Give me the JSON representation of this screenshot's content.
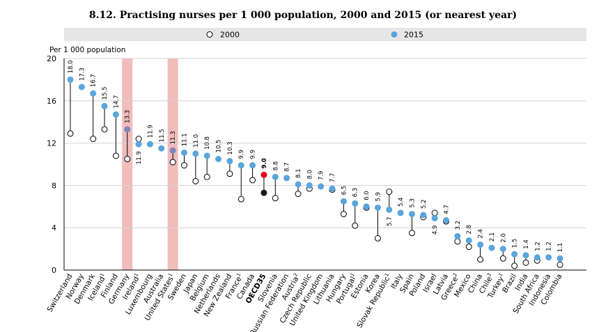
{
  "chart_data": {
    "type": "dot",
    "title": "8.12. Practising nurses per 1 000 population, 2000 and 2015 (or nearest year)",
    "ylabel": "Per 1 000 population",
    "ylim": [
      0,
      20
    ],
    "yticks": [
      0,
      4,
      8,
      12,
      16,
      20
    ],
    "grid": "horizontal",
    "legend_position": "top",
    "legend": [
      {
        "name": "2000",
        "marker": "hollow-circle"
      },
      {
        "name": "2015",
        "marker": "blue-circle"
      }
    ],
    "highlighted_categories": [
      "Germany",
      "United States"
    ],
    "categories": [
      {
        "name": "Switzerland",
        "sup": "",
        "v2000": 12.9,
        "v2015": 18.0,
        "label": "18.0"
      },
      {
        "name": "Norway",
        "sup": "",
        "v2000": null,
        "v2015": 17.3,
        "label": "17.3"
      },
      {
        "name": "Denmark",
        "sup": "",
        "v2000": 12.4,
        "v2015": 16.7,
        "label": "16.7"
      },
      {
        "name": "Iceland",
        "sup": "1",
        "v2000": 13.3,
        "v2015": 15.5,
        "label": "15.5"
      },
      {
        "name": "Finland",
        "sup": "",
        "v2000": 10.8,
        "v2015": 14.7,
        "label": "14.7"
      },
      {
        "name": "Germany",
        "sup": "",
        "v2000": 10.5,
        "v2015": 13.3,
        "label": "13.3"
      },
      {
        "name": "Ireland",
        "sup": "1",
        "v2000": 12.4,
        "v2015": 11.9,
        "label": "11.9"
      },
      {
        "name": "Luxembourg",
        "sup": "",
        "v2000": null,
        "v2015": 11.9,
        "label": "11.9"
      },
      {
        "name": "Australia",
        "sup": "",
        "v2000": null,
        "v2015": 11.5,
        "label": "11.5"
      },
      {
        "name": "United States",
        "sup": "1",
        "v2000": 10.2,
        "v2015": 11.3,
        "label": "11.3"
      },
      {
        "name": "Sweden",
        "sup": "",
        "v2000": 9.9,
        "v2015": 11.1,
        "label": "11.1"
      },
      {
        "name": "Japan",
        "sup": "",
        "v2000": 8.4,
        "v2015": 11.0,
        "label": "11.0"
      },
      {
        "name": "Belgium",
        "sup": "",
        "v2000": 8.8,
        "v2015": 10.8,
        "label": "10.8"
      },
      {
        "name": "Netherlands",
        "sup": "",
        "v2000": null,
        "v2015": 10.5,
        "label": "10.5"
      },
      {
        "name": "New Zealand",
        "sup": "",
        "v2000": 9.1,
        "v2015": 10.3,
        "label": "10.3"
      },
      {
        "name": "France",
        "sup": "1",
        "v2000": 6.7,
        "v2015": 9.9,
        "label": "9.9"
      },
      {
        "name": "Canada",
        "sup": "",
        "v2000": 8.5,
        "v2015": 9.9,
        "label": "9.9"
      },
      {
        "name": "OECD35",
        "sup": "",
        "v2000": 7.3,
        "v2015": 9.0,
        "label": "9.0",
        "highlight": true
      },
      {
        "name": "Slovenia",
        "sup": "",
        "v2000": 6.8,
        "v2015": 8.8,
        "label": "8.8"
      },
      {
        "name": "Russian Federation",
        "sup": "",
        "v2000": null,
        "v2015": 8.7,
        "label": "8.7"
      },
      {
        "name": "Austria",
        "sup": "2",
        "v2000": 7.2,
        "v2015": 8.1,
        "label": "8.1"
      },
      {
        "name": "Czech Republic",
        "sup": "",
        "v2000": 7.7,
        "v2015": 8.0,
        "label": "8.0"
      },
      {
        "name": "United Kingdom",
        "sup": "",
        "v2000": null,
        "v2015": 7.9,
        "label": "7.9"
      },
      {
        "name": "Lithuania",
        "sup": "",
        "v2000": 7.6,
        "v2015": 7.7,
        "label": "7.7"
      },
      {
        "name": "Hungary",
        "sup": "",
        "v2000": 5.3,
        "v2015": 6.5,
        "label": "6.5"
      },
      {
        "name": "Portugal",
        "sup": "1",
        "v2000": 4.2,
        "v2015": 6.3,
        "label": "6.3"
      },
      {
        "name": "Estonia",
        "sup": "",
        "v2000": 5.9,
        "v2015": 6.0,
        "label": "6.0"
      },
      {
        "name": "Korea",
        "sup": "",
        "v2000": 3.0,
        "v2015": 5.9,
        "label": "5.9"
      },
      {
        "name": "Slovak Republic",
        "sup": "1",
        "v2000": 7.4,
        "v2015": 5.7,
        "label": "5.7"
      },
      {
        "name": "Italy",
        "sup": "",
        "v2000": null,
        "v2015": 5.4,
        "label": "5.4"
      },
      {
        "name": "Spain",
        "sup": "",
        "v2000": 3.5,
        "v2015": 5.3,
        "label": "5.3"
      },
      {
        "name": "Poland",
        "sup": "",
        "v2000": 5.0,
        "v2015": 5.2,
        "label": "5.2"
      },
      {
        "name": "Israel",
        "sup": "",
        "v2000": 5.4,
        "v2015": 4.9,
        "label": "4.9"
      },
      {
        "name": "Latvia",
        "sup": "",
        "v2000": 4.6,
        "v2015": 4.7,
        "label": "4.7"
      },
      {
        "name": "Greece",
        "sup": "2",
        "v2000": 2.7,
        "v2015": 3.2,
        "label": "3.2"
      },
      {
        "name": "Mexico",
        "sup": "",
        "v2000": 2.2,
        "v2015": 2.8,
        "label": "2.8"
      },
      {
        "name": "China",
        "sup": "",
        "v2000": 1.0,
        "v2015": 2.4,
        "label": "2.4"
      },
      {
        "name": "Chile",
        "sup": "3",
        "v2000": null,
        "v2015": 2.1,
        "label": "2.1"
      },
      {
        "name": "Turkey",
        "sup": "1",
        "v2000": 1.1,
        "v2015": 2.0,
        "label": "2.0"
      },
      {
        "name": "Brazil",
        "sup": "",
        "v2000": 0.4,
        "v2015": 1.5,
        "label": "1.5"
      },
      {
        "name": "India",
        "sup": "",
        "v2000": 0.7,
        "v2015": 1.4,
        "label": "1.4"
      },
      {
        "name": "South Africa",
        "sup": "",
        "v2000": 0.9,
        "v2015": 1.2,
        "label": "1.2"
      },
      {
        "name": "Indonesia",
        "sup": "",
        "v2000": null,
        "v2015": 1.2,
        "label": "1.2"
      },
      {
        "name": "Colombia",
        "sup": "",
        "v2000": 0.5,
        "v2015": 1.1,
        "label": "1.1"
      }
    ],
    "colors": {
      "point2015": "#5aa5dc",
      "oecd2015": "#e8001c",
      "oecd2000": "#1a1a1a",
      "legend_band": "#e6e6e6",
      "highlight_band": "#f0bcbc",
      "grid": "#d4d4d4"
    }
  }
}
